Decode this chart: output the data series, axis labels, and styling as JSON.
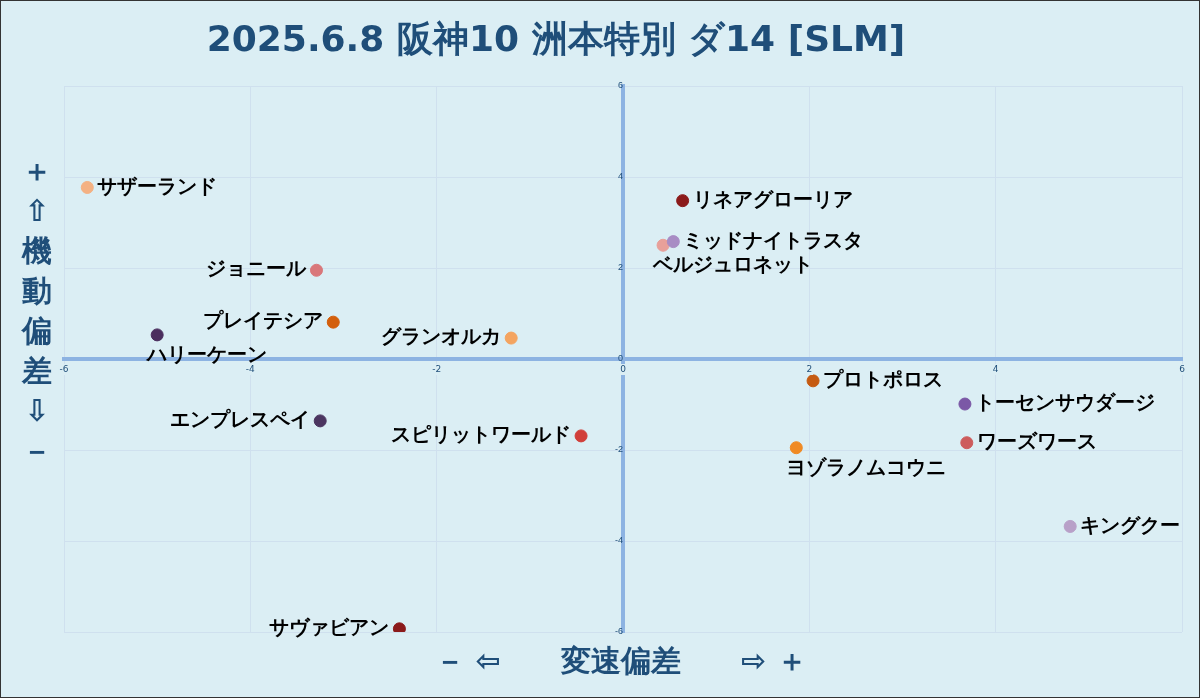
{
  "chart_data": {
    "type": "scatter",
    "title": "2025.6.8 阪神10 洲本特別 ダ14 [SLM]",
    "xlabel": "－ ⇦　　変速偏差　　⇨ ＋",
    "ylabel": "＋ ⇧ 機動偏差 ⇩ －",
    "xlim": [
      -6,
      6
    ],
    "ylim": [
      -6,
      6
    ],
    "xticks": [
      -6,
      -4,
      -2,
      0,
      2,
      4,
      6
    ],
    "yticks": [
      -6,
      -4,
      -2,
      0,
      2,
      4,
      6
    ],
    "grid": true,
    "legend": false,
    "marker": "circle",
    "series": [
      {
        "name": "サザーランド",
        "color": "#f4b183",
        "x": [
          -5.75
        ],
        "values": [
          3.77
        ]
      },
      {
        "name": "ジョニール",
        "color": "#d9777a",
        "x": [
          -3.29
        ],
        "values": [
          1.95
        ]
      },
      {
        "name": "プレイテシア",
        "color": "#d35f0c",
        "x": [
          -3.11
        ],
        "values": [
          0.81
        ]
      },
      {
        "name": "グランオルカ",
        "color": "#f4a460",
        "x": [
          -1.2
        ],
        "values": [
          0.46
        ]
      },
      {
        "name": "ハリーケーン",
        "color": "#4b2e5e",
        "x": [
          -5.0
        ],
        "values": [
          0.53
        ]
      },
      {
        "name": "エンプレスペイ",
        "color": "#4b3560",
        "x": [
          -3.25
        ],
        "values": [
          -1.36
        ]
      },
      {
        "name": "スピリットワールド",
        "color": "#d13f3a",
        "x": [
          -0.45
        ],
        "values": [
          -1.69
        ]
      },
      {
        "name": "サヴァビアン",
        "color": "#8b1a1a",
        "x": [
          -2.4
        ],
        "values": [
          -5.93
        ]
      },
      {
        "name": "リネアグローリア",
        "color": "#8b1a1a",
        "x": [
          0.64
        ],
        "values": [
          3.48
        ]
      },
      {
        "name": "ミッドナイトラスタ",
        "color": "#a88cc4",
        "x": [
          0.54
        ],
        "values": [
          2.58
        ]
      },
      {
        "name": "ベルジュロネット",
        "color": "#e8a09a",
        "x": [
          0.43
        ],
        "values": [
          2.5
        ]
      },
      {
        "name": "プロトポロス",
        "color": "#c55a11",
        "x": [
          2.04
        ],
        "values": [
          -0.48
        ]
      },
      {
        "name": "トーセンサウダージ",
        "color": "#7b58a6",
        "x": [
          3.67
        ],
        "values": [
          -0.99
        ]
      },
      {
        "name": "ワーズワース",
        "color": "#cd5c5c",
        "x": [
          3.69
        ],
        "values": [
          -1.84
        ]
      },
      {
        "name": "ヨゾラノムコウニ",
        "color": "#f08a24",
        "x": [
          1.86
        ],
        "values": [
          -1.95
        ]
      },
      {
        "name": "キングクー",
        "color": "#b8a0c8",
        "x": [
          4.8
        ],
        "values": [
          -3.68
        ]
      }
    ]
  }
}
